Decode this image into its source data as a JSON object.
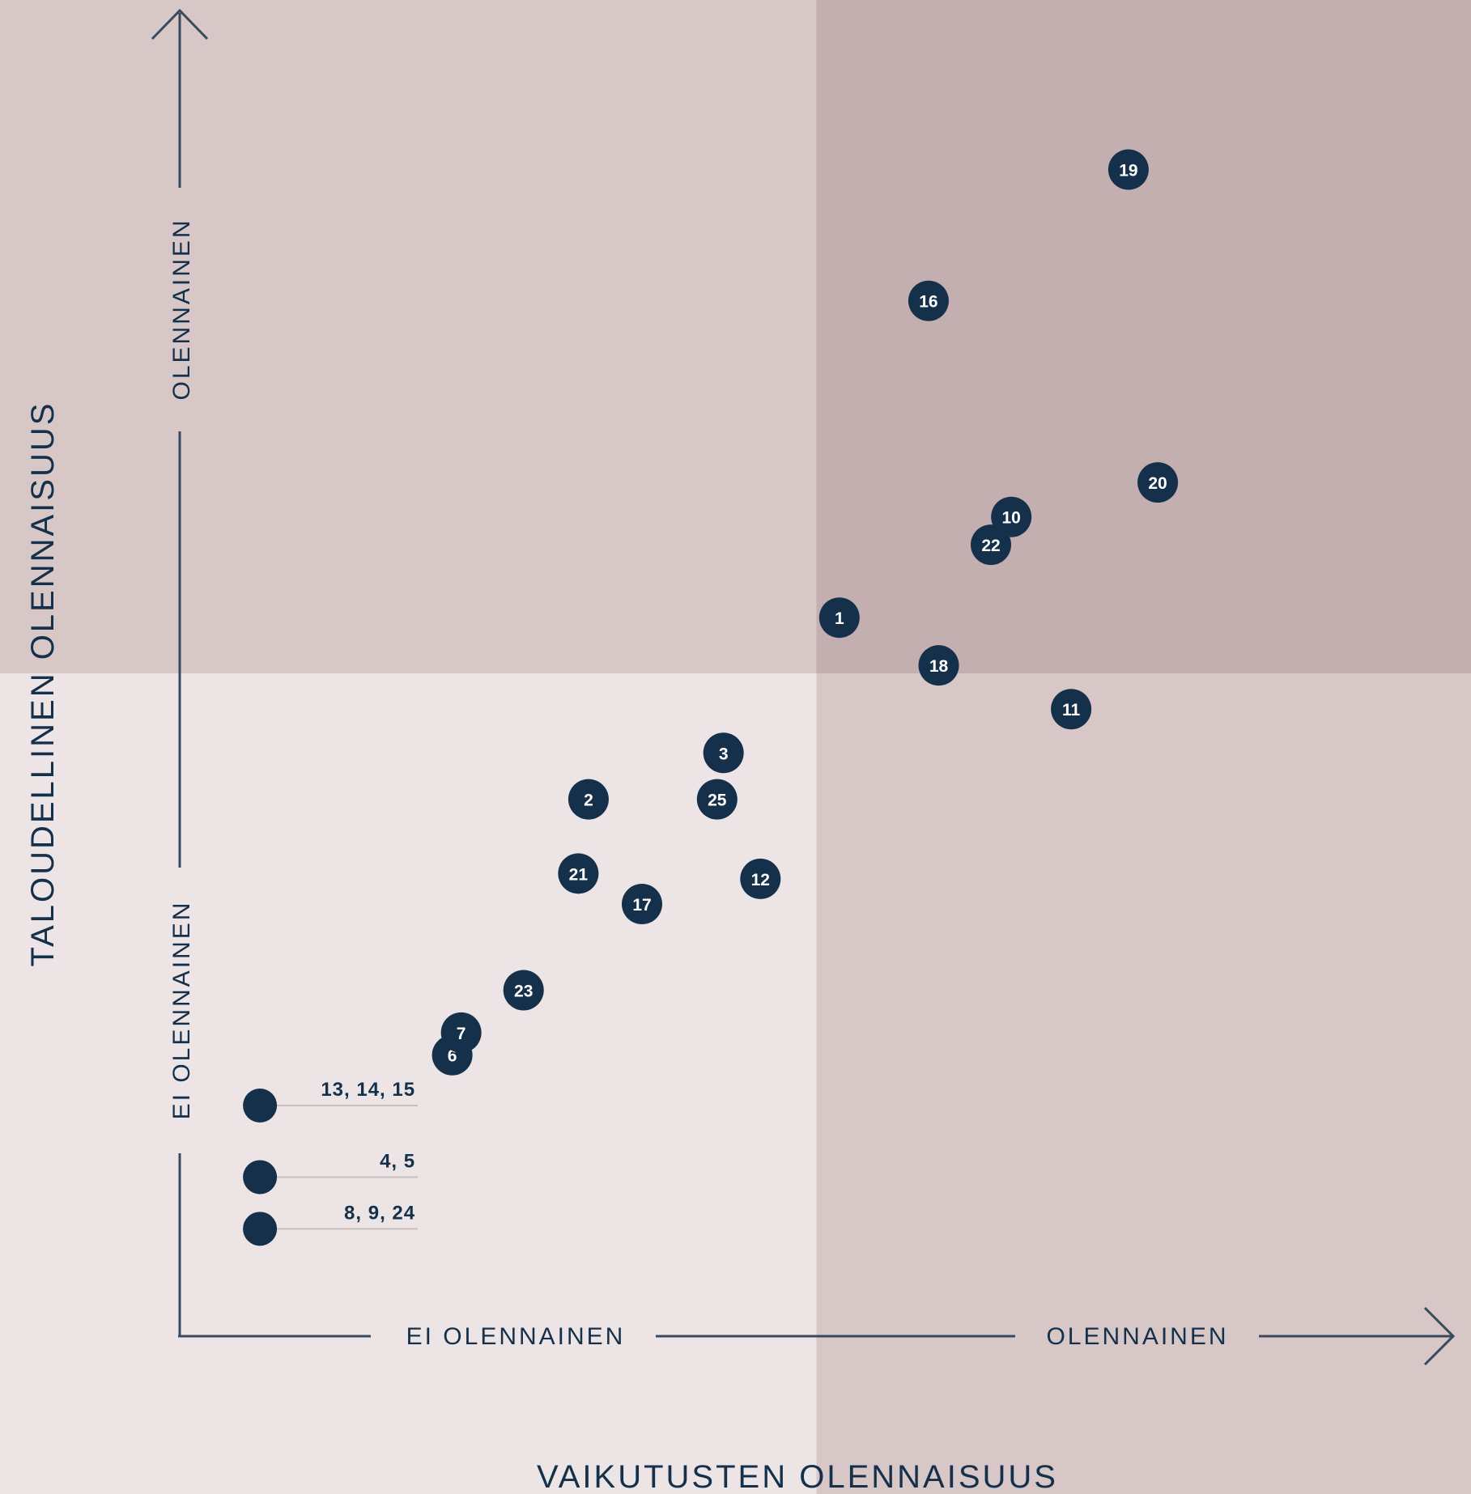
{
  "chart_data": {
    "type": "scatter",
    "xlabel": "VAIKUTUSTEN OLENNAISUUS",
    "ylabel": "TALOUDELLINEN OLENNAISUUS",
    "x_axis": {
      "low_label": "EI OLENNAINEN",
      "high_label": "OLENNAINEN"
    },
    "y_axis": {
      "low_label": "EI OLENNAINEN",
      "high_label": "OLENNAINEN"
    },
    "xlim": [
      0,
      100
    ],
    "ylim": [
      0,
      100
    ],
    "threshold": {
      "x": 50,
      "y": 50
    },
    "colors": {
      "background": "#ede5e5",
      "quadrant_mixed": "#d7c7c7",
      "quadrant_material": "#c3afaf",
      "point": "#14304a",
      "axis": "#3a4a5e",
      "group_line": "#c9bfbf"
    },
    "points": [
      {
        "label": "1",
        "x": 51.8,
        "y": 54.2
      },
      {
        "label": "2",
        "x": 32.1,
        "y": 40.5
      },
      {
        "label": "3",
        "x": 42.7,
        "y": 44.0
      },
      {
        "label": "6",
        "x": 21.4,
        "y": 21.2
      },
      {
        "label": "7",
        "x": 22.1,
        "y": 22.9
      },
      {
        "label": "10",
        "x": 65.3,
        "y": 61.8
      },
      {
        "label": "11",
        "x": 70.0,
        "y": 47.3
      },
      {
        "label": "12",
        "x": 45.6,
        "y": 34.5
      },
      {
        "label": "16",
        "x": 58.8,
        "y": 78.1
      },
      {
        "label": "17",
        "x": 36.3,
        "y": 32.6
      },
      {
        "label": "18",
        "x": 59.6,
        "y": 50.6
      },
      {
        "label": "19",
        "x": 74.5,
        "y": 88.0
      },
      {
        "label": "20",
        "x": 76.8,
        "y": 64.4
      },
      {
        "label": "21",
        "x": 31.3,
        "y": 34.9
      },
      {
        "label": "22",
        "x": 63.7,
        "y": 59.7
      },
      {
        "label": "23",
        "x": 27.0,
        "y": 26.1
      },
      {
        "label": "25",
        "x": 42.2,
        "y": 40.5
      }
    ],
    "groups": [
      {
        "label": "13, 14, 15",
        "x": 6.3,
        "y": 17.4
      },
      {
        "label": "4, 5",
        "x": 6.3,
        "y": 12.0
      },
      {
        "label": "8, 9, 24",
        "x": 6.3,
        "y": 8.1
      }
    ]
  }
}
